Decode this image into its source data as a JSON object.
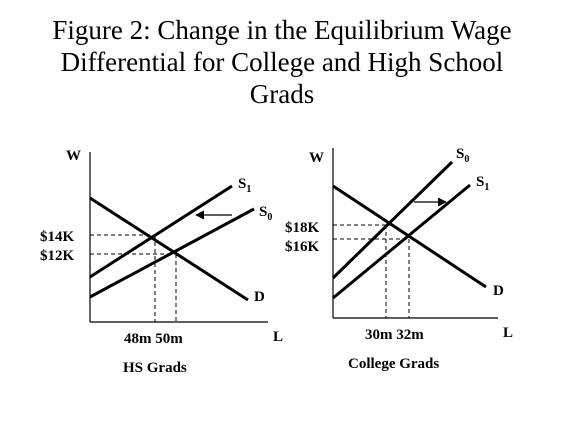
{
  "title": {
    "line1": "Figure 2: Change in the Equilibrium Wage",
    "line2": "Differential for College and High School",
    "line3": "Grads"
  },
  "panels": {
    "hs": {
      "y_axis_label": "W",
      "x_axis_label": "L",
      "supply_new": {
        "letter": "S",
        "subscript": "1"
      },
      "supply_old": {
        "letter": "S",
        "subscript": "0"
      },
      "demand_label": "D",
      "wage_high": "$14K",
      "wage_low": "$12K",
      "quantities": "48m 50m",
      "caption": "HS Grads",
      "shift_direction": "left"
    },
    "college": {
      "y_axis_label": "W",
      "x_axis_label": "L",
      "supply_old": {
        "letter": "S",
        "subscript": "0"
      },
      "supply_new": {
        "letter": "S",
        "subscript": "1"
      },
      "demand_label": "D",
      "wage_high": "$18K",
      "wage_low": "$16K",
      "quantities": "30m 32m",
      "caption": "College Grads",
      "shift_direction": "right"
    }
  },
  "colors": {
    "ink": "#000000",
    "background": "#ffffff"
  }
}
